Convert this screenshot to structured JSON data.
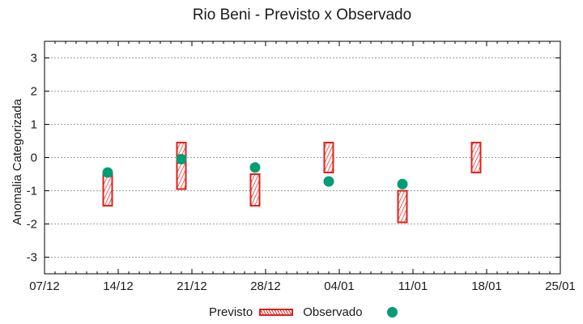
{
  "chart_data": {
    "type": "scatter",
    "title": "Rio Beni - Previsto x Observado",
    "xlabel": "",
    "ylabel": "Anomalia Categorizada",
    "x_ticks": [
      "07/12",
      "14/12",
      "21/12",
      "28/12",
      "04/01",
      "11/01",
      "18/01",
      "25/01"
    ],
    "y_ticks": [
      3,
      2,
      1,
      0,
      -1,
      -2,
      -3
    ],
    "ylim": [
      -3.5,
      3.5
    ],
    "xlim": [
      "07/12",
      "25/01"
    ],
    "grid": "horizontal dotted",
    "legend_position": "bottom",
    "series": [
      {
        "name": "Previsto",
        "kind": "range-box",
        "color": "#e0201a",
        "points": [
          {
            "x": "13/12",
            "low": -1.45,
            "high": -0.45
          },
          {
            "x": "20/12",
            "low": -0.95,
            "high": 0.45
          },
          {
            "x": "27/12",
            "low": -1.45,
            "high": -0.5
          },
          {
            "x": "03/01",
            "low": -0.45,
            "high": 0.45
          },
          {
            "x": "10/01",
            "low": -1.95,
            "high": -1.0
          },
          {
            "x": "17/01",
            "low": -0.45,
            "high": 0.45
          }
        ]
      },
      {
        "name": "Observado",
        "kind": "point",
        "color": "#009e73",
        "points": [
          {
            "x": "13/12",
            "y": -0.45
          },
          {
            "x": "20/12",
            "y": -0.05
          },
          {
            "x": "27/12",
            "y": -0.3
          },
          {
            "x": "03/01",
            "y": -0.72
          },
          {
            "x": "10/01",
            "y": -0.8
          }
        ]
      }
    ]
  },
  "legend": {
    "previsto_label": "Previsto",
    "observado_label": "Observado"
  }
}
